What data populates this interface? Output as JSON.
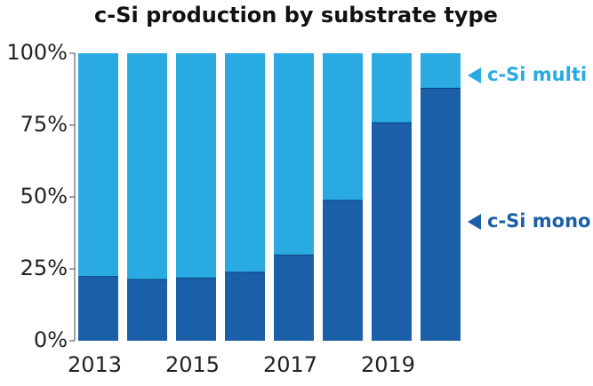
{
  "chart_data": {
    "type": "stacked-bar",
    "title": "c-Si production by substrate type",
    "categories": [
      "2013",
      null,
      "2015",
      null,
      "2017",
      null,
      "2019",
      null
    ],
    "series": [
      {
        "name": "c-Si mono",
        "color": "#1a5fa8",
        "values": [
          22.5,
          21.5,
          22,
          24,
          30,
          49,
          76,
          88
        ]
      },
      {
        "name": "c-Si multi",
        "color": "#29aae1",
        "values": [
          77.5,
          78.5,
          78,
          76,
          70,
          51,
          24,
          12
        ]
      }
    ],
    "ylim": [
      0,
      100
    ],
    "yticks": [
      {
        "value": 0,
        "label": "0%"
      },
      {
        "value": 25,
        "label": "25%"
      },
      {
        "value": 50,
        "label": "50%"
      },
      {
        "value": 75,
        "label": "75%"
      },
      {
        "value": 100,
        "label": "100%"
      }
    ]
  }
}
